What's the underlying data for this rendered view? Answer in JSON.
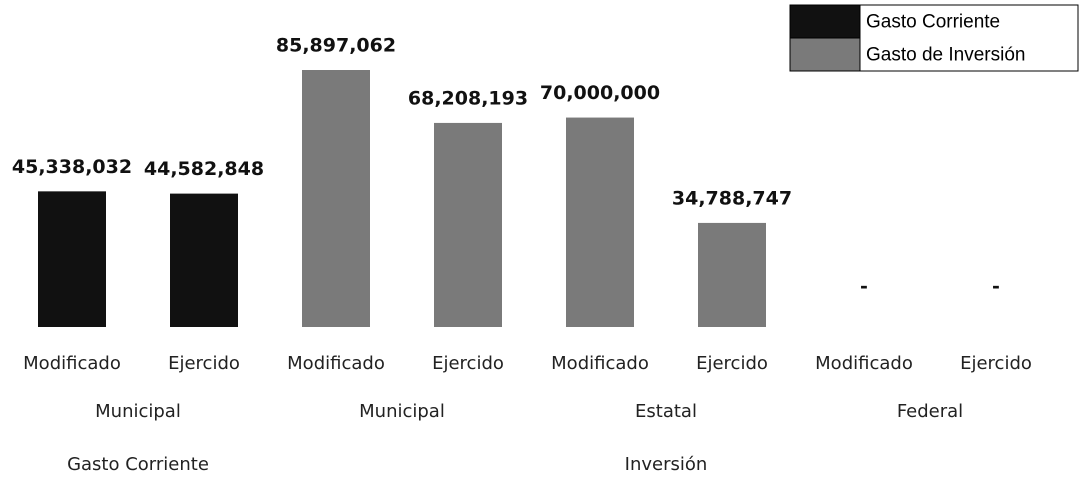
{
  "chart_data": {
    "type": "bar",
    "categories": [
      "Modificado",
      "Ejercido",
      "Modificado",
      "Ejercido",
      "Modificado",
      "Ejercido",
      "Modificado",
      "Ejercido"
    ],
    "groups": [
      {
        "label": "Municipal",
        "start": 0,
        "end": 1
      },
      {
        "label": "Municipal",
        "start": 2,
        "end": 3
      },
      {
        "label": "Estatal",
        "start": 4,
        "end": 5
      },
      {
        "label": "Federal",
        "start": 6,
        "end": 7
      }
    ],
    "supergroups": [
      {
        "label": "Gasto Corriente",
        "start": 0,
        "end": 1
      },
      {
        "label": "Inversión",
        "start": 2,
        "end": 7
      }
    ],
    "series": [
      {
        "name": "Gasto Corriente",
        "color": "#111111",
        "values": [
          45338032,
          44582848,
          null,
          null,
          null,
          null,
          null,
          null
        ],
        "value_labels": [
          "45,338,032",
          "44,582,848",
          null,
          null,
          null,
          null,
          null,
          null
        ]
      },
      {
        "name": "Gasto de Inversión",
        "color": "#7a7a7a",
        "values": [
          null,
          null,
          85897062,
          68208193,
          70000000,
          34788747,
          0,
          0
        ],
        "value_labels": [
          null,
          null,
          "85,897,062",
          "68,208,193",
          "70,000,000",
          "34,788,747",
          "-",
          "-"
        ]
      }
    ],
    "legend": "top-right"
  }
}
